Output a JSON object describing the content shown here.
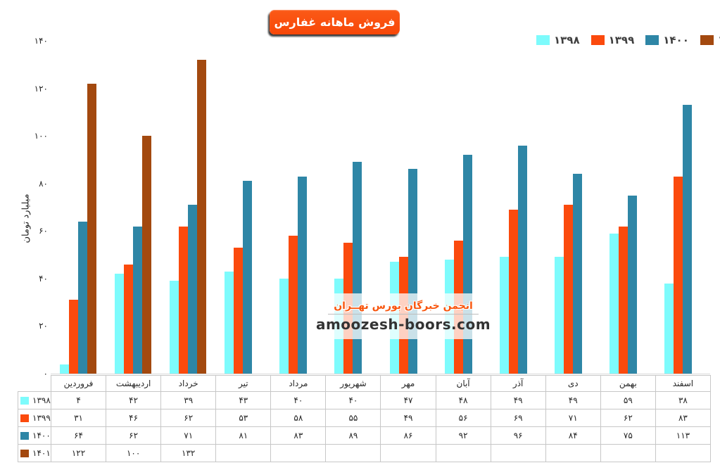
{
  "title": "فروش ماهانه غفارس",
  "watermark": {
    "line1": "انجمن خبرگان بورس تهــران",
    "line2": "amoozesh-boors.com"
  },
  "colors": {
    "series_1398": "#7dfbfc",
    "series_1399": "#fb4a0d",
    "series_1400": "#2e86a6",
    "series_1401": "#a3490f",
    "title_badge": "#f84a0b",
    "watermark_text": "#f8560e",
    "axis_line": "#d9d9d9",
    "table_border": "#c7c7c7"
  },
  "chart_data": {
    "type": "bar",
    "title": "فروش ماهانه غفارس",
    "xlabel": "",
    "ylabel": "میلیارد تومان",
    "ylim": [
      0,
      140
    ],
    "grid": false,
    "legend_position": "top-right",
    "y_ticks": [
      0,
      20,
      40,
      60,
      80,
      100,
      120,
      140
    ],
    "y_tick_labels": [
      "۰",
      "۲۰",
      "۴۰",
      "۶۰",
      "۸۰",
      "۱۰۰",
      "۱۲۰",
      "۱۴۰"
    ],
    "categories": [
      "فروردین",
      "اردیبهشت",
      "خرداد",
      "تیر",
      "مرداد",
      "شهریور",
      "مهر",
      "آبان",
      "آذر",
      "دی",
      "بهمن",
      "اسفند"
    ],
    "series": [
      {
        "name": "۱۳۹۸",
        "color": "#7dfbfc",
        "values": [
          4,
          42,
          39,
          43,
          40,
          40,
          47,
          48,
          49,
          49,
          59,
          38
        ],
        "display": [
          "۴",
          "۴۲",
          "۳۹",
          "۴۳",
          "۴۰",
          "۴۰",
          "۴۷",
          "۴۸",
          "۴۹",
          "۴۹",
          "۵۹",
          "۳۸"
        ]
      },
      {
        "name": "۱۳۹۹",
        "color": "#fb4a0d",
        "values": [
          31,
          46,
          62,
          53,
          58,
          55,
          49,
          56,
          69,
          71,
          62,
          83
        ],
        "display": [
          "۳۱",
          "۴۶",
          "۶۲",
          "۵۳",
          "۵۸",
          "۵۵",
          "۴۹",
          "۵۶",
          "۶۹",
          "۷۱",
          "۶۲",
          "۸۳"
        ]
      },
      {
        "name": "۱۴۰۰",
        "color": "#2e86a6",
        "values": [
          64,
          62,
          71,
          81,
          83,
          89,
          86,
          92,
          96,
          84,
          75,
          113
        ],
        "display": [
          "۶۴",
          "۶۲",
          "۷۱",
          "۸۱",
          "۸۳",
          "۸۹",
          "۸۶",
          "۹۲",
          "۹۶",
          "۸۴",
          "۷۵",
          "۱۱۳"
        ]
      },
      {
        "name": "۱۴۰۱",
        "color": "#a3490f",
        "values": [
          122,
          100,
          132,
          null,
          null,
          null,
          null,
          null,
          null,
          null,
          null,
          null
        ],
        "display": [
          "۱۲۲",
          "۱۰۰",
          "۱۳۲",
          "",
          "",
          "",
          "",
          "",
          "",
          "",
          "",
          ""
        ]
      }
    ]
  }
}
